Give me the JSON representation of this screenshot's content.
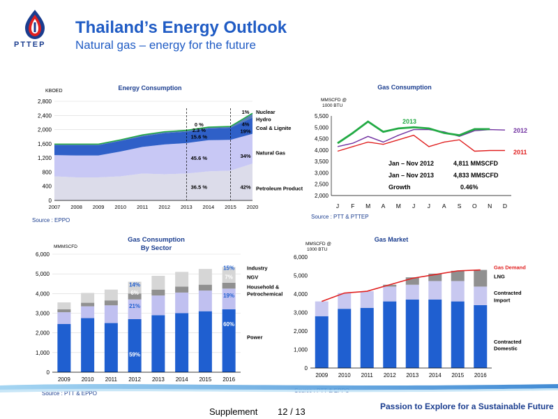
{
  "header": {
    "logo_text": "PTTEP",
    "title": "Thailand’s Energy Outlook",
    "subtitle": "Natural gas – energy for the future"
  },
  "colors": {
    "brand_blue": "#1f5bc4",
    "navy": "#1a3d8f",
    "red": "#e02020",
    "green": "#22aa44",
    "purple": "#7030a0"
  },
  "footer": {
    "supplement": "Supplement",
    "page": "12 / 13",
    "tagline": "Passion to Explore for a Sustainable Future"
  },
  "chart_data": [
    {
      "id": "energy",
      "type": "area",
      "title": "Energy Consumption",
      "ylabel": "KBOED",
      "xlabel": "",
      "x": [
        "2007",
        "2008",
        "2009",
        "2010",
        "2011",
        "2012",
        "2013",
        "2014",
        "2015",
        "2020"
      ],
      "ylim": [
        0,
        2800
      ],
      "yticks": [
        "0",
        "400",
        "800",
        "1,200",
        "1,600",
        "2,000",
        "2,400",
        "2,800"
      ],
      "grid": true,
      "source": "Source :  EPPO",
      "series": [
        {
          "name": "Petroleum Product",
          "color": "#dcdcea",
          "values": [
            680,
            650,
            650,
            680,
            760,
            740,
            760,
            820,
            840,
            1040
          ]
        },
        {
          "name": "Natural Gas",
          "color": "#c8c8f5",
          "values": [
            600,
            620,
            620,
            700,
            750,
            840,
            860,
            880,
            870,
            840
          ]
        },
        {
          "name": "Coal & Lignite",
          "color": "#2f60c8",
          "values": [
            280,
            290,
            290,
            300,
            300,
            320,
            320,
            330,
            340,
            460
          ]
        },
        {
          "name": "Hydro",
          "color": "#5a7fb8",
          "values": [
            30,
            30,
            30,
            30,
            40,
            40,
            40,
            40,
            40,
            100
          ]
        },
        {
          "name": "Nuclear",
          "color": "#56a8c8",
          "values": [
            0,
            0,
            0,
            0,
            0,
            0,
            0,
            0,
            0,
            20
          ]
        }
      ],
      "legend": [
        {
          "text": "Nuclear",
          "y": 2500
        },
        {
          "text": "Hydro",
          "y": 2300
        },
        {
          "text": "Coal & Lignite",
          "y": 2050
        },
        {
          "text": "Natural Gas",
          "y": 1350
        },
        {
          "text": "Petroleum Product",
          "y": 350
        }
      ],
      "labels_2013": [
        {
          "text": "0 %",
          "y": 2150
        },
        {
          "text": "2.3 %",
          "y": 1990
        },
        {
          "text": "15.6 %",
          "y": 1800
        },
        {
          "text": "45.6 %",
          "y": 1200
        },
        {
          "text": "36.5 %",
          "y": 380
        }
      ],
      "labels_2020": [
        {
          "text": "1%",
          "y": 2500
        },
        {
          "text": "4%",
          "y": 2160
        },
        {
          "text": "19%",
          "y": 1960
        },
        {
          "text": "34%",
          "y": 1260
        },
        {
          "text": "42%",
          "y": 380
        }
      ]
    },
    {
      "id": "gascons",
      "type": "line",
      "title": "Gas Consumption",
      "ylabel": "MMSCFD @ 1000 BTU",
      "categories": [
        "J",
        "F",
        "M",
        "A",
        "M",
        "J",
        "J",
        "A",
        "S",
        "O",
        "N",
        "D"
      ],
      "ylim": [
        2000,
        5500
      ],
      "yticks": [
        "2,000",
        "2,500",
        "3,000",
        "3,500",
        "4,000",
        "4,500",
        "5,000",
        "5,500"
      ],
      "grid": false,
      "source": "Source : PTT & PTTEP",
      "series": [
        {
          "name": "2011",
          "color": "#e02020",
          "values": [
            3950,
            4150,
            4350,
            4250,
            4450,
            4650,
            4150,
            4350,
            4450,
            3950,
            3980,
            3980
          ]
        },
        {
          "name": "2012",
          "color": "#7030a0",
          "values": [
            4150,
            4300,
            4600,
            4350,
            4650,
            4900,
            4900,
            4800,
            4600,
            4850,
            4900,
            4880
          ]
        },
        {
          "name": "2013",
          "color": "#22aa44",
          "values": [
            4300,
            4750,
            5250,
            4800,
            4950,
            5000,
            4950,
            4750,
            4650,
            4920,
            4920,
            null
          ]
        }
      ],
      "stats": [
        {
          "label": "Jan – Nov 2012",
          "value": "4,811 MMSCFD"
        },
        {
          "label": "Jan – Nov 2013",
          "value": "4,833 MMSCFD"
        },
        {
          "label": "Growth",
          "value": "0.46%"
        }
      ]
    },
    {
      "id": "sector",
      "type": "bar",
      "title": "Gas Consumption\nBy Sector",
      "ylabel": "MMMSCFD",
      "categories": [
        "2009",
        "2010",
        "2011",
        "2012",
        "2013",
        "2014",
        "2015",
        "2016"
      ],
      "ylim": [
        0,
        6000
      ],
      "yticks": [
        "0",
        "1,000",
        "2,000",
        "3,000",
        "4,000",
        "5,000",
        "6,000"
      ],
      "grid": true,
      "source": "Source :  PTT & EPPO",
      "series": [
        {
          "name": "Power",
          "color": "#1f5fd0",
          "values": [
            2450,
            2750,
            2500,
            2700,
            2900,
            3000,
            3100,
            3200
          ]
        },
        {
          "name": "Household & Petrochemical",
          "color": "#c0c0f0",
          "values": [
            600,
            600,
            900,
            1000,
            1000,
            1050,
            1050,
            1050
          ]
        },
        {
          "name": "NGV",
          "color": "#909090",
          "values": [
            150,
            180,
            250,
            300,
            300,
            300,
            300,
            300
          ]
        },
        {
          "name": "Industry",
          "color": "#d6d6d6",
          "values": [
            350,
            500,
            550,
            600,
            700,
            750,
            800,
            800
          ]
        }
      ],
      "legend": [
        {
          "text": "Industry",
          "y": 5300
        },
        {
          "text": "NGV",
          "y": 4850
        },
        {
          "text": "Household &",
          "y": 4350
        },
        {
          "text": "Petrochemical",
          "y": 4000
        },
        {
          "text": "Power",
          "y": 1800
        }
      ],
      "pct_labels": [
        {
          "cat": 3,
          "text": "14%",
          "y": 4450,
          "color": "#1f5fd0"
        },
        {
          "cat": 3,
          "text": "6%",
          "y": 4050,
          "color": "#ffffff"
        },
        {
          "cat": 3,
          "text": "21%",
          "y": 3380,
          "color": "#1f5fd0"
        },
        {
          "cat": 3,
          "text": "59%",
          "y": 900,
          "color": "#ffffff"
        },
        {
          "cat": 7,
          "text": "15%",
          "y": 5300,
          "color": "#1f5fd0"
        },
        {
          "cat": 7,
          "text": "7%",
          "y": 4850,
          "color": "#ffffff"
        },
        {
          "cat": 7,
          "text": "19%",
          "y": 3900,
          "color": "#1f5fd0"
        },
        {
          "cat": 7,
          "text": "60%",
          "y": 2450,
          "color": "#ffffff"
        }
      ]
    },
    {
      "id": "market",
      "type": "bar",
      "title": "Gas Market",
      "ylabel": "MMSCFD @ 1000 BTU",
      "categories": [
        "2009",
        "2010",
        "2011",
        "2012",
        "2013",
        "2014",
        "2015",
        "2016"
      ],
      "ylim": [
        0,
        6000
      ],
      "yticks": [
        "0",
        "1,000",
        "2,000",
        "3,000",
        "4,000",
        "5,000",
        "6,000"
      ],
      "grid": false,
      "source": "Source :  PTT & EPPO",
      "series": [
        {
          "name": "Contracted Domestic",
          "color": "#1f5fd0",
          "values": [
            2800,
            3200,
            3250,
            3600,
            3700,
            3700,
            3600,
            3400
          ]
        },
        {
          "name": "Contracted Import",
          "color": "#c8c8f0",
          "values": [
            800,
            850,
            900,
            800,
            800,
            1000,
            1100,
            1000
          ]
        },
        {
          "name": "LNG",
          "color": "#909090",
          "values": [
            0,
            0,
            0,
            100,
            400,
            400,
            550,
            900
          ]
        }
      ],
      "demand": {
        "name": "Gas Demand",
        "color": "#e02020",
        "values": [
          3600,
          4050,
          4150,
          4500,
          4850,
          5050,
          5250,
          5300
        ]
      },
      "legend": [
        {
          "text": "Gas Demand",
          "y": 5450,
          "color": "#e02020"
        },
        {
          "text": "LNG",
          "y": 4960,
          "color": "#000000"
        },
        {
          "text": "Contracted",
          "y": 4080,
          "color": "#000000"
        },
        {
          "text": "Import",
          "y": 3680,
          "color": "#000000"
        },
        {
          "text": "Contracted",
          "y": 1440,
          "color": "#000000"
        },
        {
          "text": "Domestic",
          "y": 1080,
          "color": "#000000"
        }
      ]
    }
  ]
}
